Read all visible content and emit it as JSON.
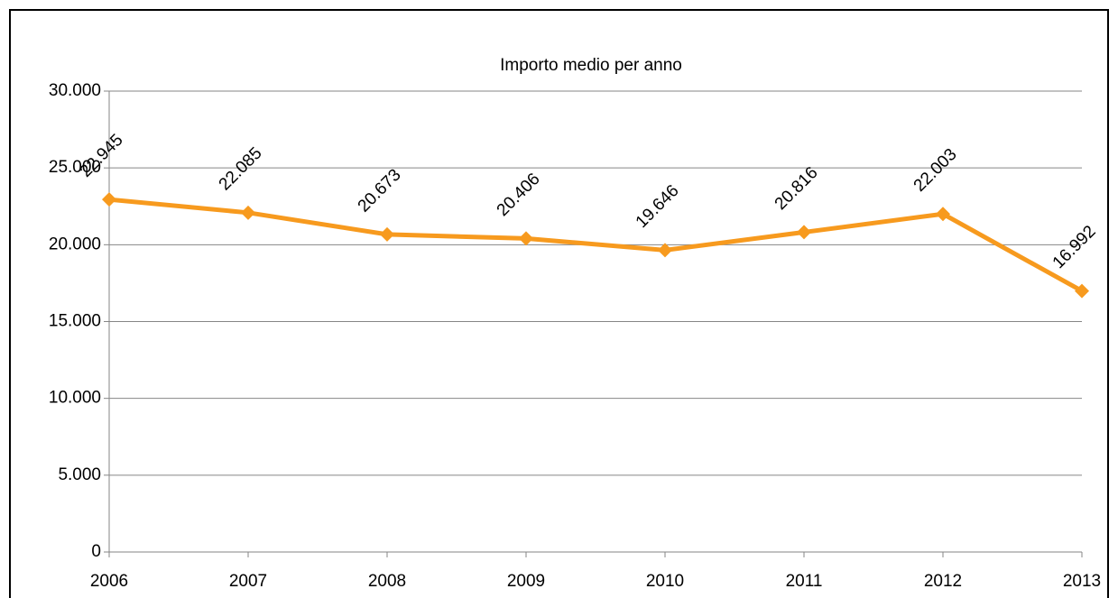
{
  "chart_data": {
    "type": "line",
    "title": "Importo medio per anno",
    "categories": [
      "2006",
      "2007",
      "2008",
      "2009",
      "2010",
      "2011",
      "2012",
      "2013"
    ],
    "series": [
      {
        "name": "Importo medio",
        "color": "#f79a1e",
        "values": [
          22945,
          22085,
          20673,
          20406,
          19646,
          20816,
          22003,
          16992
        ],
        "value_labels": [
          "22.945",
          "22.085",
          "20.673",
          "20.406",
          "19.646",
          "20.816",
          "22.003",
          "16.992"
        ]
      }
    ],
    "ylim": [
      0,
      30000
    ],
    "yticks": [
      0,
      {
        "value": 5000,
        "label": "5.000"
      },
      {
        "value": 10000,
        "label": "10.000"
      },
      {
        "value": 15000,
        "label": "15.000"
      },
      {
        "value": 20000,
        "label": "20.000"
      },
      {
        "value": 25000,
        "label": "25.000"
      },
      {
        "value": 30000,
        "label": "30.000"
      }
    ],
    "grid": true
  }
}
